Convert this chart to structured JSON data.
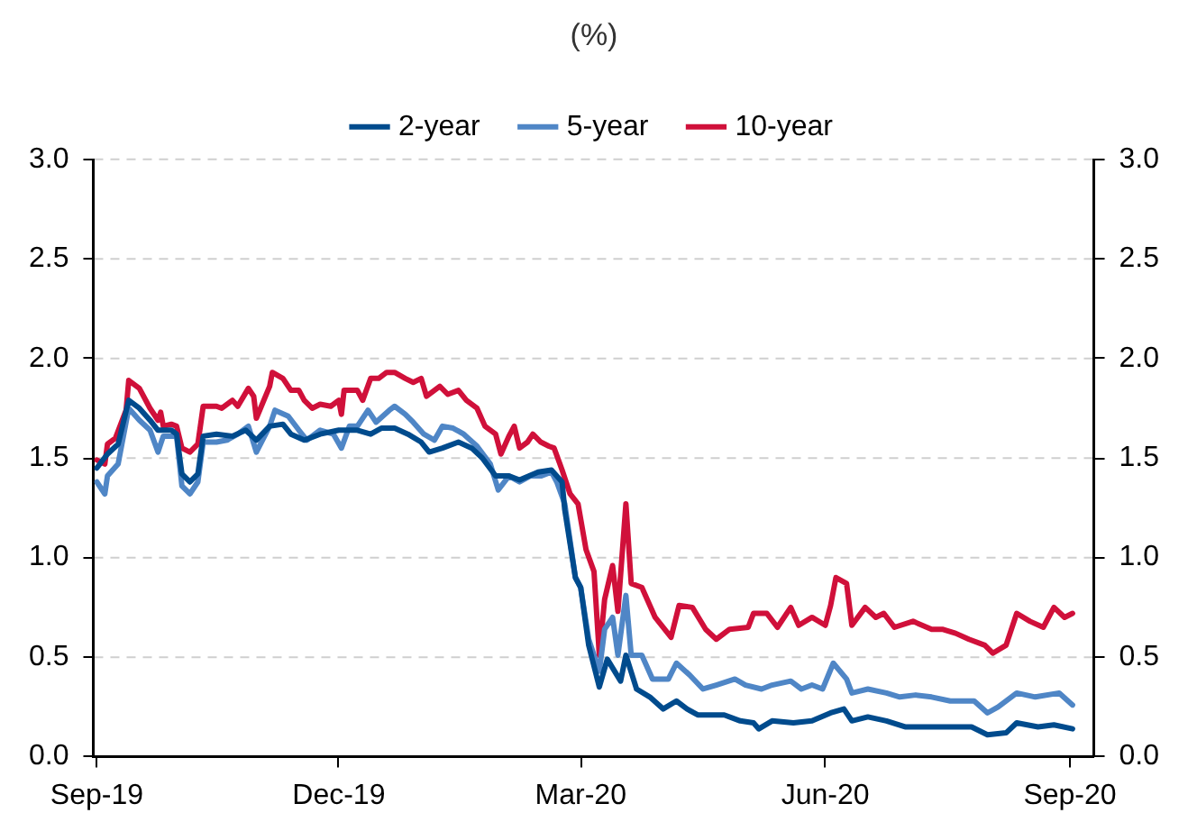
{
  "chart_data": {
    "type": "line",
    "title": "(%)",
    "legend": "top",
    "grid": "y",
    "marker": "none",
    "line_style": "solid",
    "xlim": [
      "2019-08-31",
      "2020-09-10"
    ],
    "xticks": [
      {
        "value": "2019-09-01",
        "label": "Sep-19"
      },
      {
        "value": "2019-12-01",
        "label": "Dec-19"
      },
      {
        "value": "2020-03-01",
        "label": "Mar-20"
      },
      {
        "value": "2020-06-01",
        "label": "Jun-20"
      },
      {
        "value": "2020-09-01",
        "label": "Sep-20"
      }
    ],
    "ylim": [
      0,
      3
    ],
    "yticks": [
      {
        "value": 0,
        "label": "0.0"
      },
      {
        "value": 0.5,
        "label": "0.5"
      },
      {
        "value": 1,
        "label": "1.0"
      },
      {
        "value": 1.5,
        "label": "1.5"
      },
      {
        "value": 2,
        "label": "2.0"
      },
      {
        "value": 2.5,
        "label": "2.5"
      },
      {
        "value": 3,
        "label": "3.0"
      }
    ],
    "y2lim": [
      0,
      3
    ],
    "y2ticks": [
      {
        "value": 0,
        "label": "0.0"
      },
      {
        "value": 0.5,
        "label": "0.5"
      },
      {
        "value": 1,
        "label": "1.0"
      },
      {
        "value": 1.5,
        "label": "1.5"
      },
      {
        "value": 2,
        "label": "2.0"
      },
      {
        "value": 2.5,
        "label": "2.5"
      },
      {
        "value": 3,
        "label": "3.0"
      }
    ],
    "series": [
      {
        "name": "2-year",
        "color": "#004b8d",
        "x": [
          "2019-09-01",
          "2019-09-05",
          "2019-09-09",
          "2019-09-13",
          "2019-09-17",
          "2019-09-21",
          "2019-09-24",
          "2019-09-29",
          "2019-10-01",
          "2019-10-03",
          "2019-10-06",
          "2019-10-09",
          "2019-10-11",
          "2019-10-16",
          "2019-10-22",
          "2019-10-27",
          "2019-10-31",
          "2019-11-05",
          "2019-11-10",
          "2019-11-13",
          "2019-11-18",
          "2019-11-24",
          "2019-12-01",
          "2019-12-08",
          "2019-12-13",
          "2019-12-17",
          "2019-12-22",
          "2019-12-27",
          "2020-01-01",
          "2020-01-04",
          "2020-01-09",
          "2020-01-15",
          "2020-01-20",
          "2020-01-24",
          "2020-01-29",
          "2020-02-03",
          "2020-02-07",
          "2020-02-14",
          "2020-02-19",
          "2020-02-23",
          "2020-02-24",
          "2020-02-28",
          "2020-03-01",
          "2020-03-04",
          "2020-03-08",
          "2020-03-11",
          "2020-03-16",
          "2020-03-18",
          "2020-03-22",
          "2020-03-27",
          "2020-04-01",
          "2020-04-06",
          "2020-04-10",
          "2020-04-14",
          "2020-04-24",
          "2020-04-30",
          "2020-05-05",
          "2020-05-07",
          "2020-05-12",
          "2020-05-20",
          "2020-05-27",
          "2020-06-03",
          "2020-06-08",
          "2020-06-11",
          "2020-06-17",
          "2020-06-24",
          "2020-07-01",
          "2020-07-11",
          "2020-07-20",
          "2020-07-26",
          "2020-08-01",
          "2020-08-08",
          "2020-08-12",
          "2020-08-20",
          "2020-08-26",
          "2020-09-02"
        ],
        "values": [
          1.45,
          1.52,
          1.57,
          1.79,
          1.75,
          1.69,
          1.64,
          1.64,
          1.62,
          1.42,
          1.38,
          1.42,
          1.61,
          1.62,
          1.61,
          1.64,
          1.59,
          1.66,
          1.67,
          1.62,
          1.59,
          1.62,
          1.64,
          1.64,
          1.62,
          1.65,
          1.65,
          1.62,
          1.58,
          1.53,
          1.55,
          1.58,
          1.55,
          1.5,
          1.41,
          1.41,
          1.39,
          1.43,
          1.44,
          1.38,
          1.24,
          0.9,
          0.85,
          0.56,
          0.35,
          0.49,
          0.38,
          0.51,
          0.34,
          0.3,
          0.24,
          0.28,
          0.24,
          0.21,
          0.21,
          0.18,
          0.17,
          0.14,
          0.18,
          0.17,
          0.18,
          0.22,
          0.24,
          0.18,
          0.2,
          0.18,
          0.15,
          0.15,
          0.15,
          0.15,
          0.11,
          0.12,
          0.17,
          0.15,
          0.16,
          0.14
        ]
      },
      {
        "name": "5-year",
        "color": "#4f86c6",
        "x": [
          "2019-09-01",
          "2019-09-04",
          "2019-09-05",
          "2019-09-09",
          "2019-09-13",
          "2019-09-17",
          "2019-09-21",
          "2019-09-24",
          "2019-09-26",
          "2019-10-01",
          "2019-10-03",
          "2019-10-06",
          "2019-10-09",
          "2019-10-11",
          "2019-10-16",
          "2019-10-20",
          "2019-10-24",
          "2019-10-28",
          "2019-10-31",
          "2019-11-05",
          "2019-11-07",
          "2019-11-12",
          "2019-11-16",
          "2019-11-19",
          "2019-11-24",
          "2019-11-29",
          "2019-12-02",
          "2019-12-05",
          "2019-12-08",
          "2019-12-12",
          "2019-12-15",
          "2019-12-20",
          "2019-12-22",
          "2019-12-26",
          "2019-12-29",
          "2020-01-02",
          "2020-01-06",
          "2020-01-09",
          "2020-01-13",
          "2020-01-17",
          "2020-01-22",
          "2020-01-27",
          "2020-01-30",
          "2020-02-03",
          "2020-02-07",
          "2020-02-11",
          "2020-02-15",
          "2020-02-19",
          "2020-02-21",
          "2020-02-24",
          "2020-02-28",
          "2020-03-01",
          "2020-03-04",
          "2020-03-08",
          "2020-03-10",
          "2020-03-13",
          "2020-03-15",
          "2020-03-18",
          "2020-03-20",
          "2020-03-24",
          "2020-03-28",
          "2020-04-03",
          "2020-04-06",
          "2020-04-11",
          "2020-04-16",
          "2020-04-21",
          "2020-04-28",
          "2020-05-02",
          "2020-05-08",
          "2020-05-12",
          "2020-05-19",
          "2020-05-23",
          "2020-05-27",
          "2020-05-31",
          "2020-06-04",
          "2020-06-09",
          "2020-06-11",
          "2020-06-17",
          "2020-06-24",
          "2020-06-29",
          "2020-07-05",
          "2020-07-11",
          "2020-07-18",
          "2020-07-27",
          "2020-08-01",
          "2020-08-05",
          "2020-08-12",
          "2020-08-19",
          "2020-08-28",
          "2020-09-02"
        ],
        "values": [
          1.38,
          1.32,
          1.41,
          1.47,
          1.75,
          1.69,
          1.64,
          1.53,
          1.61,
          1.61,
          1.36,
          1.32,
          1.38,
          1.58,
          1.58,
          1.59,
          1.62,
          1.66,
          1.53,
          1.66,
          1.74,
          1.71,
          1.64,
          1.59,
          1.64,
          1.62,
          1.55,
          1.66,
          1.66,
          1.74,
          1.68,
          1.74,
          1.76,
          1.72,
          1.68,
          1.62,
          1.59,
          1.66,
          1.65,
          1.62,
          1.56,
          1.47,
          1.34,
          1.41,
          1.38,
          1.41,
          1.41,
          1.43,
          1.38,
          1.27,
          0.9,
          0.85,
          0.59,
          0.43,
          0.64,
          0.7,
          0.51,
          0.81,
          0.51,
          0.51,
          0.39,
          0.39,
          0.47,
          0.41,
          0.34,
          0.36,
          0.39,
          0.36,
          0.34,
          0.36,
          0.38,
          0.34,
          0.36,
          0.34,
          0.47,
          0.39,
          0.32,
          0.34,
          0.32,
          0.3,
          0.31,
          0.3,
          0.28,
          0.28,
          0.22,
          0.25,
          0.32,
          0.3,
          0.32,
          0.26
        ]
      },
      {
        "name": "10-year",
        "color": "#d0103a",
        "x": [
          "2019-09-01",
          "2019-09-04",
          "2019-09-05",
          "2019-09-08",
          "2019-09-12",
          "2019-09-13",
          "2019-09-17",
          "2019-09-21",
          "2019-09-24",
          "2019-09-25",
          "2019-09-26",
          "2019-09-29",
          "2019-10-01",
          "2019-10-03",
          "2019-10-06",
          "2019-10-09",
          "2019-10-11",
          "2019-10-16",
          "2019-10-18",
          "2019-10-22",
          "2019-10-24",
          "2019-10-28",
          "2019-10-30",
          "2019-10-31",
          "2019-11-05",
          "2019-11-06",
          "2019-11-10",
          "2019-11-13",
          "2019-11-16",
          "2019-11-18",
          "2019-11-21",
          "2019-11-24",
          "2019-11-28",
          "2019-12-01",
          "2019-12-02",
          "2019-12-03",
          "2019-12-08",
          "2019-12-10",
          "2019-12-13",
          "2019-12-16",
          "2019-12-19",
          "2019-12-22",
          "2019-12-26",
          "2019-12-29",
          "2020-01-01",
          "2020-01-03",
          "2020-01-08",
          "2020-01-11",
          "2020-01-15",
          "2020-01-18",
          "2020-01-22",
          "2020-01-25",
          "2020-01-29",
          "2020-01-31",
          "2020-02-03",
          "2020-02-05",
          "2020-02-07",
          "2020-02-10",
          "2020-02-12",
          "2020-02-15",
          "2020-02-18",
          "2020-02-20",
          "2020-02-23",
          "2020-02-26",
          "2020-02-29",
          "2020-03-03",
          "2020-03-06",
          "2020-03-08",
          "2020-03-10",
          "2020-03-13",
          "2020-03-15",
          "2020-03-18",
          "2020-03-20",
          "2020-03-24",
          "2020-03-29",
          "2020-04-04",
          "2020-04-07",
          "2020-04-12",
          "2020-04-17",
          "2020-04-21",
          "2020-04-26",
          "2020-05-03",
          "2020-05-05",
          "2020-05-10",
          "2020-05-14",
          "2020-05-19",
          "2020-05-22",
          "2020-05-27",
          "2020-06-01",
          "2020-06-03",
          "2020-06-05",
          "2020-06-09",
          "2020-06-11",
          "2020-06-16",
          "2020-06-20",
          "2020-06-23",
          "2020-06-27",
          "2020-07-04",
          "2020-07-11",
          "2020-07-15",
          "2020-07-20",
          "2020-07-25",
          "2020-07-31",
          "2020-08-03",
          "2020-08-08",
          "2020-08-12",
          "2020-08-17",
          "2020-08-22",
          "2020-08-26",
          "2020-08-30",
          "2020-09-02"
        ],
        "values": [
          1.49,
          1.47,
          1.57,
          1.6,
          1.74,
          1.89,
          1.85,
          1.75,
          1.69,
          1.73,
          1.66,
          1.67,
          1.66,
          1.55,
          1.53,
          1.57,
          1.76,
          1.76,
          1.75,
          1.79,
          1.76,
          1.85,
          1.81,
          1.7,
          1.86,
          1.93,
          1.9,
          1.84,
          1.84,
          1.79,
          1.75,
          1.77,
          1.76,
          1.79,
          1.72,
          1.84,
          1.84,
          1.79,
          1.9,
          1.9,
          1.93,
          1.93,
          1.9,
          1.88,
          1.9,
          1.81,
          1.86,
          1.82,
          1.84,
          1.79,
          1.75,
          1.66,
          1.62,
          1.52,
          1.61,
          1.66,
          1.55,
          1.58,
          1.62,
          1.58,
          1.56,
          1.55,
          1.44,
          1.32,
          1.27,
          1.04,
          0.93,
          0.51,
          0.79,
          0.96,
          0.73,
          1.27,
          0.87,
          0.85,
          0.7,
          0.6,
          0.76,
          0.75,
          0.64,
          0.59,
          0.64,
          0.65,
          0.72,
          0.72,
          0.65,
          0.75,
          0.66,
          0.7,
          0.66,
          0.76,
          0.9,
          0.87,
          0.66,
          0.75,
          0.7,
          0.72,
          0.65,
          0.68,
          0.64,
          0.64,
          0.62,
          0.59,
          0.56,
          0.52,
          0.56,
          0.72,
          0.68,
          0.65,
          0.75,
          0.7,
          0.72
        ]
      }
    ]
  }
}
